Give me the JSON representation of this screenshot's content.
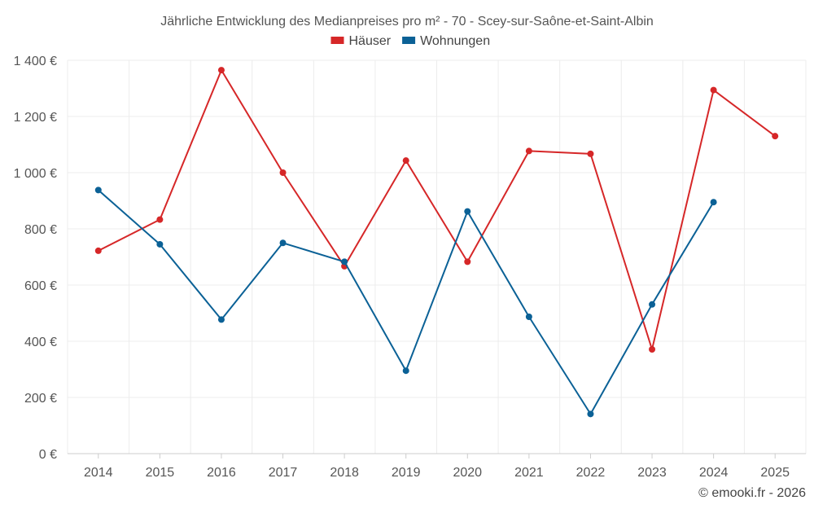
{
  "chart_data": {
    "type": "line",
    "title": "Jährliche Entwicklung des Medianpreises pro m² - 70 - Scey-sur-Saône-et-Saint-Albin",
    "categories": [
      "2014",
      "2015",
      "2016",
      "2017",
      "2018",
      "2019",
      "2020",
      "2021",
      "2022",
      "2023",
      "2024",
      "2025"
    ],
    "y_tick_labels": [
      "0 €",
      "200 €",
      "400 €",
      "600 €",
      "800 €",
      "1 000 €",
      "1 200 €",
      "1 400 €"
    ],
    "y_ticks": [
      0,
      200,
      400,
      600,
      800,
      1000,
      1200,
      1400
    ],
    "ylim": [
      0,
      1400
    ],
    "xlabel": "",
    "ylabel": "",
    "grid": true,
    "legend_position": "top-center",
    "series": [
      {
        "name": "Häuser",
        "color": "#d62728",
        "values": [
          722,
          833,
          1365,
          1000,
          667,
          1043,
          683,
          1077,
          1067,
          371,
          1294,
          1130
        ]
      },
      {
        "name": "Wohnungen",
        "color": "#0b6196",
        "values": [
          938,
          745,
          477,
          750,
          683,
          295,
          862,
          487,
          141,
          531,
          895,
          null
        ]
      }
    ]
  },
  "credit": "© emooki.fr - 2026"
}
